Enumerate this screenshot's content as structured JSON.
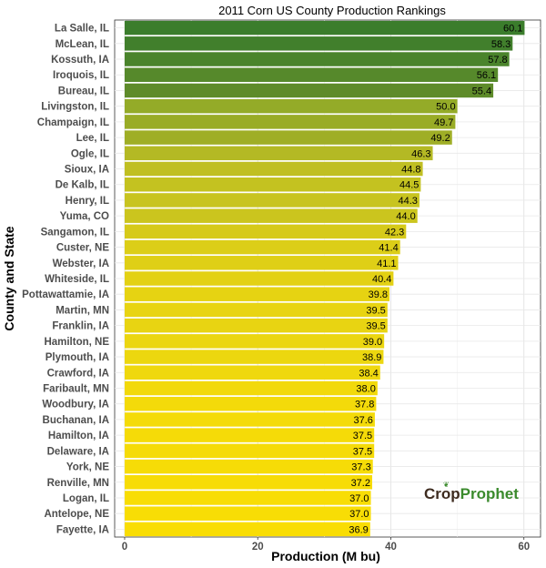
{
  "chart_data": {
    "type": "bar",
    "orientation": "horizontal",
    "title": "2011 Corn US County Production Rankings",
    "xlabel": "Production (M bu)",
    "ylabel": "County and State",
    "xlim": [
      -1.5,
      62.5
    ],
    "xticks": [
      0,
      20,
      40,
      60
    ],
    "grid": true,
    "categories": [
      "La Salle, IL",
      "McLean, IL",
      "Kossuth, IA",
      "Iroquois, IL",
      "Bureau, IL",
      "Livingston, IL",
      "Champaign, IL",
      "Lee, IL",
      "Ogle, IL",
      "Sioux, IA",
      "De Kalb, IL",
      "Henry, IL",
      "Yuma, CO",
      "Sangamon, IL",
      "Custer, NE",
      "Webster, IA",
      "Whiteside, IL",
      "Pottawattamie, IA",
      "Martin, MN",
      "Franklin, IA",
      "Hamilton, NE",
      "Plymouth, IA",
      "Crawford, IA",
      "Faribault, MN",
      "Woodbury, IA",
      "Buchanan, IA",
      "Hamilton, IA",
      "Delaware, IA",
      "York, NE",
      "Renville, MN",
      "Logan, IL",
      "Antelope, NE",
      "Fayette, IA"
    ],
    "values": [
      60.1,
      58.3,
      57.8,
      56.1,
      55.4,
      50.0,
      49.7,
      49.2,
      46.3,
      44.8,
      44.5,
      44.3,
      44.0,
      42.3,
      41.4,
      41.1,
      40.4,
      39.8,
      39.5,
      39.5,
      39.0,
      38.9,
      38.4,
      38.0,
      37.8,
      37.6,
      37.5,
      37.5,
      37.3,
      37.2,
      37.0,
      37.0,
      36.9
    ],
    "value_labels": [
      "60.1",
      "58.3",
      "57.8",
      "56.1",
      "55.4",
      "50.0",
      "49.7",
      "49.2",
      "46.3",
      "44.8",
      "44.5",
      "44.3",
      "44.0",
      "42.3",
      "41.4",
      "41.1",
      "40.4",
      "39.8",
      "39.5",
      "39.5",
      "39.0",
      "38.9",
      "38.4",
      "38.0",
      "37.8",
      "37.6",
      "37.5",
      "37.5",
      "37.3",
      "37.2",
      "37.0",
      "37.0",
      "36.9"
    ],
    "bar_colors": [
      "#3b7d2c",
      "#417f2c",
      "#4a842c",
      "#56892b",
      "#5e8b2a",
      "#94ab28",
      "#99ac26",
      "#9fae26",
      "#b4b924",
      "#c0bf22",
      "#c4c220",
      "#c8c420",
      "#cbc51e",
      "#d6ca1a",
      "#dcce18",
      "#dfcf16",
      "#e3d114",
      "#e6d312",
      "#e8d412",
      "#e8d412",
      "#ebd610",
      "#ecd70f",
      "#efd80e",
      "#f2d90b",
      "#f3da0a",
      "#f4db09",
      "#f5db08",
      "#f5db08",
      "#f6dc07",
      "#f7dc06",
      "#f8dd05",
      "#f8dd05",
      "#f9dd04"
    ]
  },
  "logo": {
    "part1": "Crop",
    "part2": "Prophet"
  }
}
